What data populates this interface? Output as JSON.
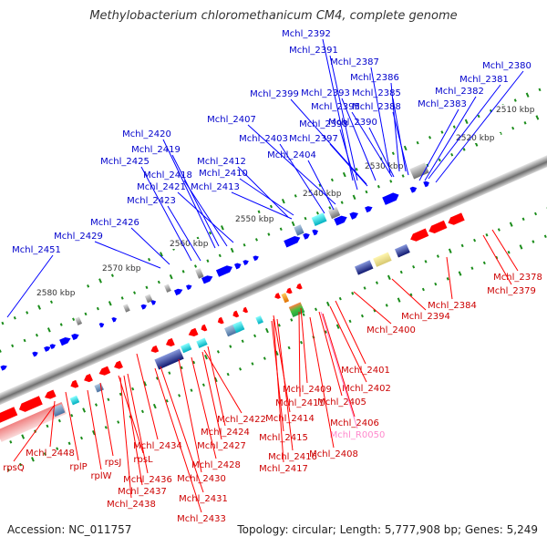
{
  "title": "Methylobacterium chloromethanicum CM4, complete genome",
  "footer": {
    "accession": "Accession: NC_011757",
    "topology": "Topology: circular; Length: 5,777,908 bp; Genes: 5,249"
  },
  "colors": {
    "forward_gene": "#0000ff",
    "reverse_gene": "#ff0000",
    "forward_label": "#0000cc",
    "reverse_label": "#cc0000",
    "rna_label": "#ff88cc",
    "backbone": "#808080",
    "ticks": "#1a8c1a"
  },
  "scale": [
    "2510 kbp",
    "2520 kbp",
    "2530 kbp",
    "2540 kbp",
    "2550 kbp",
    "2560 kbp",
    "2570 kbp",
    "2580 kbp"
  ],
  "top_labels": [
    "Mchl_2392",
    "Mchl_2391",
    "Mchl_2387",
    "Mchl_2380",
    "Mchl_2386",
    "Mchl_2381",
    "Mchl_2399",
    "Mchl_2393",
    "Mchl_2385",
    "Mchl_2382",
    "Mchl_2395",
    "Mchl_2388",
    "Mchl_2383",
    "Mchl_2407",
    "Mchl_2398",
    "Mchl_2390",
    "Mchl_2420",
    "Mchl_2403",
    "Mchl_2397",
    "Mchl_2419",
    "Mchl_2404",
    "Mchl_2425",
    "Mchl_2412",
    "Mchl_2418",
    "Mchl_2410",
    "Mchl_2421",
    "Mchl_2413",
    "Mchl_2423",
    "Mchl_2426",
    "Mchl_2429",
    "Mchl_2451"
  ],
  "bottom_labels": [
    "Mchl_2378",
    "Mchl_2379",
    "Mchl_2384",
    "Mchl_2394",
    "Mchl_2400",
    "Mchl_2401",
    "Mchl_2402",
    "Mchl_2409",
    "Mchl_2405",
    "Mchl_2411",
    "Mchl_2406",
    "Mchl_2414",
    "Mchl_R0050",
    "Mchl_2422",
    "Mchl_2415",
    "Mchl_2408",
    "Mchl_2427",
    "Mchl_2424",
    "Mchl_2416",
    "Mchl_2417",
    "Mchl_2434",
    "Mchl_2428",
    "Mchl_2430",
    "Mchl_2431",
    "Mchl_2433",
    "Mchl_2448",
    "rpsQ",
    "rplP",
    "rpsJ",
    "rpsL",
    "rplW",
    "Mchl_2436",
    "Mchl_2437",
    "Mchl_2438"
  ]
}
